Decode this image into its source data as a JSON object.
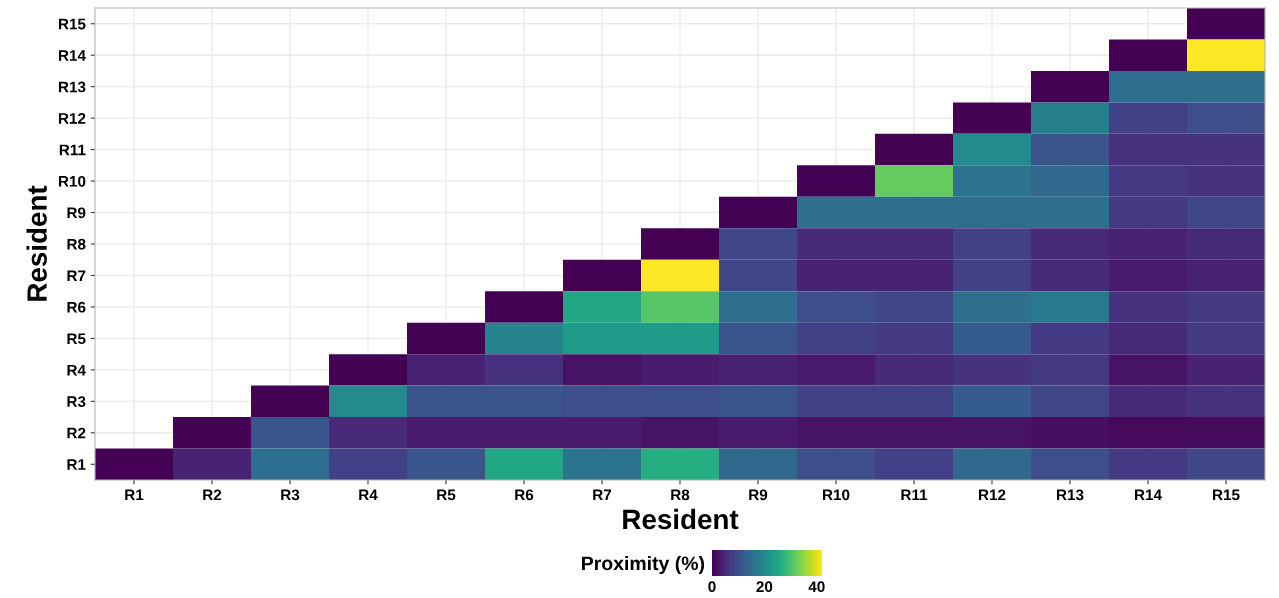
{
  "chart_data": {
    "type": "heatmap",
    "xlabel": "Resident",
    "ylabel": "Resident",
    "clabel": "Proximity (%)",
    "categories": [
      "R1",
      "R2",
      "R3",
      "R4",
      "R5",
      "R6",
      "R7",
      "R8",
      "R9",
      "R10",
      "R11",
      "R12",
      "R13",
      "R14",
      "R15"
    ],
    "y_categories": [
      "R15",
      "R14",
      "R13",
      "R12",
      "R11",
      "R10",
      "R9",
      "R8",
      "R7",
      "R6",
      "R5",
      "R4",
      "R3",
      "R2",
      "R1"
    ],
    "cells": [
      [
        null,
        null,
        null,
        null,
        null,
        null,
        null,
        null,
        null,
        null,
        null,
        null,
        null,
        null,
        0
      ],
      [
        null,
        null,
        null,
        null,
        null,
        null,
        null,
        null,
        null,
        null,
        null,
        null,
        null,
        0,
        42
      ],
      [
        null,
        null,
        null,
        null,
        null,
        null,
        null,
        null,
        null,
        null,
        null,
        null,
        0,
        15,
        15
      ],
      [
        null,
        null,
        null,
        null,
        null,
        null,
        null,
        null,
        null,
        null,
        null,
        0,
        18,
        8,
        10
      ],
      [
        null,
        null,
        null,
        null,
        null,
        null,
        null,
        null,
        null,
        null,
        0,
        20,
        11,
        6,
        6
      ],
      [
        null,
        null,
        null,
        null,
        null,
        null,
        null,
        null,
        null,
        0,
        32,
        16,
        14,
        7,
        6
      ],
      [
        null,
        null,
        null,
        null,
        null,
        null,
        null,
        null,
        0,
        15,
        15,
        15,
        15,
        7,
        9
      ],
      [
        null,
        null,
        null,
        null,
        null,
        null,
        null,
        0,
        9,
        5,
        5,
        8,
        5,
        4,
        5
      ],
      [
        null,
        null,
        null,
        null,
        null,
        null,
        0,
        42,
        9,
        4,
        4,
        8,
        5,
        3,
        4
      ],
      [
        null,
        null,
        null,
        null,
        null,
        0,
        25,
        31,
        15,
        10,
        9,
        15,
        17,
        6,
        7
      ],
      [
        null,
        null,
        null,
        null,
        0,
        19,
        23,
        23,
        11,
        8,
        7,
        12,
        7,
        5,
        7
      ],
      [
        null,
        null,
        null,
        0,
        4,
        6,
        2,
        3,
        4,
        3,
        5,
        6,
        7,
        2,
        4
      ],
      [
        null,
        null,
        0,
        20,
        11,
        11,
        10,
        10,
        11,
        8,
        8,
        12,
        9,
        5,
        6
      ],
      [
        null,
        0,
        11,
        5,
        3,
        3,
        3,
        2,
        3,
        2,
        2,
        2,
        1.5,
        1,
        1
      ],
      [
        0,
        4,
        15,
        8,
        11,
        25,
        16,
        26,
        14,
        10,
        8,
        14,
        10,
        7,
        9
      ]
    ],
    "clim": [
      0,
      42
    ],
    "cticks": [
      0,
      20,
      40
    ],
    "grid": true
  }
}
